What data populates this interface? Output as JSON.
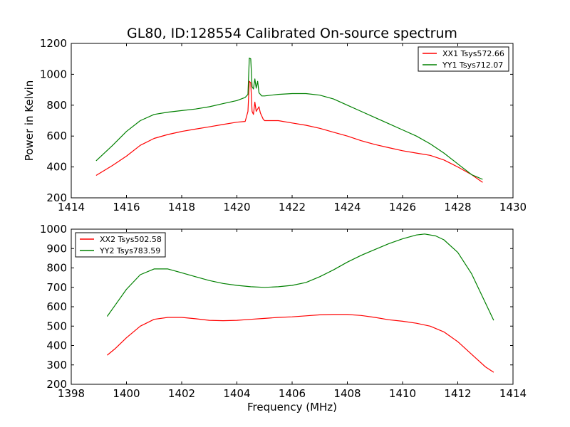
{
  "figure": {
    "title": "GL80, ID:128554 Calibrated On-source spectrum",
    "xlabel": "Frequency (MHz)"
  },
  "chart_data": [
    {
      "type": "line",
      "ylabel": "Power in Kelvin",
      "xlim": [
        1414,
        1430
      ],
      "ylim": [
        200,
        1200
      ],
      "xticks": [
        1414,
        1416,
        1418,
        1420,
        1422,
        1424,
        1426,
        1428,
        1430
      ],
      "yticks": [
        200,
        400,
        600,
        800,
        1000,
        1200
      ],
      "legend_position": "top-right",
      "series": [
        {
          "name": "XX1 Tsys572.66",
          "color": "#ff0000",
          "points": [
            [
              1414.9,
              345
            ],
            [
              1415.5,
              410
            ],
            [
              1416.0,
              470
            ],
            [
              1416.5,
              540
            ],
            [
              1417.0,
              585
            ],
            [
              1417.5,
              610
            ],
            [
              1418.0,
              630
            ],
            [
              1418.5,
              645
            ],
            [
              1419.0,
              660
            ],
            [
              1419.5,
              675
            ],
            [
              1420.0,
              690
            ],
            [
              1420.3,
              695
            ],
            [
              1420.4,
              760
            ],
            [
              1420.45,
              955
            ],
            [
              1420.5,
              945
            ],
            [
              1420.55,
              760
            ],
            [
              1420.6,
              740
            ],
            [
              1420.65,
              820
            ],
            [
              1420.7,
              760
            ],
            [
              1420.8,
              790
            ],
            [
              1420.85,
              750
            ],
            [
              1420.95,
              710
            ],
            [
              1421.0,
              700
            ],
            [
              1421.5,
              700
            ],
            [
              1422.0,
              685
            ],
            [
              1422.5,
              670
            ],
            [
              1423.0,
              650
            ],
            [
              1423.5,
              625
            ],
            [
              1424.0,
              600
            ],
            [
              1424.5,
              570
            ],
            [
              1425.0,
              545
            ],
            [
              1425.5,
              525
            ],
            [
              1426.0,
              505
            ],
            [
              1426.5,
              490
            ],
            [
              1427.0,
              475
            ],
            [
              1427.5,
              445
            ],
            [
              1428.0,
              400
            ],
            [
              1428.5,
              350
            ],
            [
              1428.9,
              300
            ]
          ]
        },
        {
          "name": "YY1 Tsys712.07",
          "color": "#008000",
          "points": [
            [
              1414.9,
              440
            ],
            [
              1415.5,
              540
            ],
            [
              1416.0,
              630
            ],
            [
              1416.5,
              700
            ],
            [
              1417.0,
              740
            ],
            [
              1417.5,
              755
            ],
            [
              1418.0,
              765
            ],
            [
              1418.5,
              775
            ],
            [
              1419.0,
              790
            ],
            [
              1419.5,
              810
            ],
            [
              1420.0,
              830
            ],
            [
              1420.3,
              850
            ],
            [
              1420.4,
              870
            ],
            [
              1420.45,
              1105
            ],
            [
              1420.5,
              1100
            ],
            [
              1420.55,
              920
            ],
            [
              1420.6,
              905
            ],
            [
              1420.65,
              970
            ],
            [
              1420.7,
              910
            ],
            [
              1420.75,
              955
            ],
            [
              1420.8,
              880
            ],
            [
              1420.9,
              860
            ],
            [
              1421.0,
              860
            ],
            [
              1421.5,
              870
            ],
            [
              1422.0,
              875
            ],
            [
              1422.5,
              875
            ],
            [
              1423.0,
              865
            ],
            [
              1423.5,
              840
            ],
            [
              1424.0,
              800
            ],
            [
              1424.5,
              760
            ],
            [
              1425.0,
              720
            ],
            [
              1425.5,
              680
            ],
            [
              1426.0,
              640
            ],
            [
              1426.5,
              600
            ],
            [
              1427.0,
              550
            ],
            [
              1427.5,
              490
            ],
            [
              1428.0,
              420
            ],
            [
              1428.5,
              350
            ],
            [
              1428.9,
              320
            ]
          ]
        }
      ]
    },
    {
      "type": "line",
      "xlim": [
        1398,
        1414
      ],
      "ylim": [
        200,
        1000
      ],
      "xticks": [
        1398,
        1400,
        1402,
        1404,
        1406,
        1408,
        1410,
        1412,
        1414
      ],
      "yticks": [
        200,
        300,
        400,
        500,
        600,
        700,
        800,
        900,
        1000
      ],
      "legend_position": "top-left",
      "series": [
        {
          "name": "XX2 Tsys502.58",
          "color": "#ff0000",
          "points": [
            [
              1399.3,
              350
            ],
            [
              1399.6,
              385
            ],
            [
              1400.0,
              440
            ],
            [
              1400.5,
              500
            ],
            [
              1401.0,
              535
            ],
            [
              1401.5,
              545
            ],
            [
              1402.0,
              545
            ],
            [
              1402.5,
              538
            ],
            [
              1403.0,
              530
            ],
            [
              1403.5,
              528
            ],
            [
              1404.0,
              530
            ],
            [
              1404.5,
              535
            ],
            [
              1405.0,
              540
            ],
            [
              1405.5,
              545
            ],
            [
              1406.0,
              548
            ],
            [
              1406.5,
              553
            ],
            [
              1407.0,
              558
            ],
            [
              1407.5,
              560
            ],
            [
              1408.0,
              560
            ],
            [
              1408.5,
              555
            ],
            [
              1409.0,
              545
            ],
            [
              1409.5,
              533
            ],
            [
              1410.0,
              525
            ],
            [
              1410.5,
              515
            ],
            [
              1411.0,
              500
            ],
            [
              1411.5,
              470
            ],
            [
              1412.0,
              420
            ],
            [
              1412.5,
              355
            ],
            [
              1413.0,
              290
            ],
            [
              1413.3,
              262
            ]
          ]
        },
        {
          "name": "YY2 Tsys783.59",
          "color": "#008000",
          "points": [
            [
              1399.3,
              550
            ],
            [
              1399.6,
              610
            ],
            [
              1400.0,
              690
            ],
            [
              1400.5,
              765
            ],
            [
              1401.0,
              795
            ],
            [
              1401.5,
              795
            ],
            [
              1402.0,
              775
            ],
            [
              1402.5,
              755
            ],
            [
              1403.0,
              735
            ],
            [
              1403.5,
              720
            ],
            [
              1404.0,
              710
            ],
            [
              1404.5,
              703
            ],
            [
              1405.0,
              700
            ],
            [
              1405.5,
              703
            ],
            [
              1406.0,
              710
            ],
            [
              1406.5,
              725
            ],
            [
              1407.0,
              755
            ],
            [
              1407.5,
              790
            ],
            [
              1408.0,
              830
            ],
            [
              1408.5,
              865
            ],
            [
              1409.0,
              895
            ],
            [
              1409.5,
              925
            ],
            [
              1410.0,
              950
            ],
            [
              1410.5,
              970
            ],
            [
              1410.8,
              975
            ],
            [
              1411.2,
              965
            ],
            [
              1411.5,
              945
            ],
            [
              1412.0,
              880
            ],
            [
              1412.5,
              770
            ],
            [
              1413.0,
              620
            ],
            [
              1413.3,
              530
            ]
          ]
        }
      ]
    }
  ]
}
